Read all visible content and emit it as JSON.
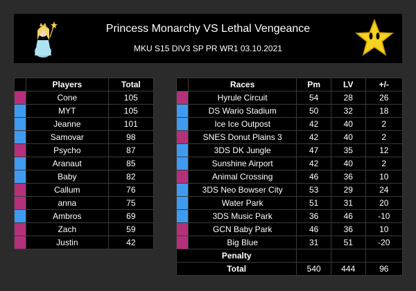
{
  "header": {
    "title": "Princess Monarchy VS Lethal Vengeance",
    "subtitle": "MKU S15 DIV3 SP PR WR1 03.10.2021",
    "left_logo_icon": "rosalina-icon",
    "right_logo_icon": "star-icon"
  },
  "colors": {
    "pink": "#b5307a",
    "blue": "#3f9bf0",
    "black": "#000000",
    "background": "#2b2b2b"
  },
  "players": {
    "headers": {
      "player": "Players",
      "total": "Total"
    },
    "rows": [
      {
        "team": "pink",
        "name": "Cone",
        "total": "105"
      },
      {
        "team": "blue",
        "name": "MYT",
        "total": "105"
      },
      {
        "team": "blue",
        "name": "Jeanne",
        "total": "101"
      },
      {
        "team": "blue",
        "name": "Samovar",
        "total": "98"
      },
      {
        "team": "pink",
        "name": "Psycho",
        "total": "87"
      },
      {
        "team": "blue",
        "name": "Aranaut",
        "total": "85"
      },
      {
        "team": "blue",
        "name": "Baby",
        "total": "82"
      },
      {
        "team": "pink",
        "name": "Callum",
        "total": "76"
      },
      {
        "team": "pink",
        "name": "anna",
        "total": "75"
      },
      {
        "team": "blue",
        "name": "Ambros",
        "total": "69"
      },
      {
        "team": "pink",
        "name": "Zach",
        "total": "59"
      },
      {
        "team": "pink",
        "name": "Justin",
        "total": "42"
      }
    ]
  },
  "races": {
    "headers": {
      "race": "Races",
      "pm": "Pm",
      "lv": "LV",
      "diff": "+/-"
    },
    "rows": [
      {
        "team": "pink",
        "name": "Hyrule Circuit",
        "pm": "54",
        "lv": "28",
        "diff": "26"
      },
      {
        "team": "blue",
        "name": "DS Wario Stadium",
        "pm": "50",
        "lv": "32",
        "diff": "18"
      },
      {
        "team": "blue",
        "name": "Ice Ice Outpost",
        "pm": "42",
        "lv": "40",
        "diff": "2"
      },
      {
        "team": "pink",
        "name": "SNES Donut Plains 3",
        "pm": "42",
        "lv": "40",
        "diff": "2"
      },
      {
        "team": "blue",
        "name": "3DS DK Jungle",
        "pm": "47",
        "lv": "35",
        "diff": "12"
      },
      {
        "team": "blue",
        "name": "Sunshine Airport",
        "pm": "42",
        "lv": "40",
        "diff": "2"
      },
      {
        "team": "pink",
        "name": "Animal Crossing",
        "pm": "46",
        "lv": "36",
        "diff": "10"
      },
      {
        "team": "blue",
        "name": "3DS Neo Bowser City",
        "pm": "53",
        "lv": "29",
        "diff": "24"
      },
      {
        "team": "blue",
        "name": "Water Park",
        "pm": "51",
        "lv": "31",
        "diff": "20"
      },
      {
        "team": "blue",
        "name": "3DS Music Park",
        "pm": "36",
        "lv": "46",
        "diff": "-10"
      },
      {
        "team": "pink",
        "name": "GCN Baby Park",
        "pm": "46",
        "lv": "36",
        "diff": "10"
      },
      {
        "team": "pink",
        "name": "Big Blue",
        "pm": "31",
        "lv": "51",
        "diff": "-20"
      }
    ],
    "penalty": {
      "label": "Penalty",
      "pm": "",
      "lv": "",
      "diff": ""
    },
    "total": {
      "label": "Total",
      "pm": "540",
      "lv": "444",
      "diff": "96"
    }
  }
}
